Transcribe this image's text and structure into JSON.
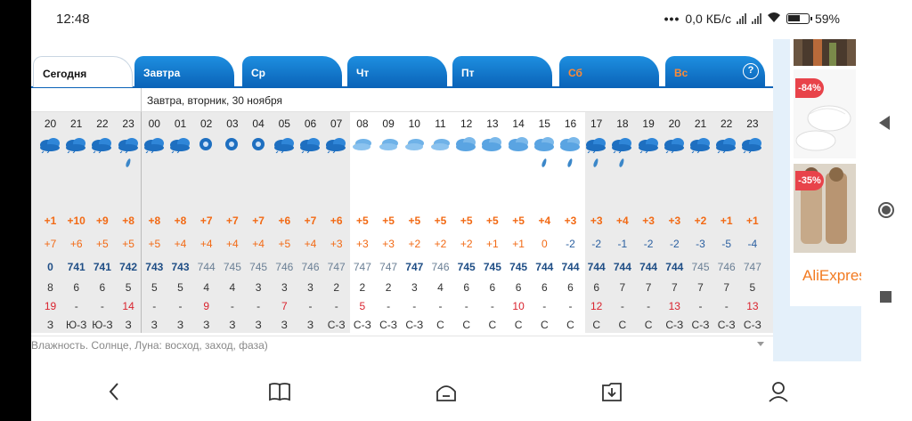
{
  "status": {
    "time": "12:48",
    "dots": "•••",
    "net": "0,0 КБ/с",
    "battery": "59%"
  },
  "tabs": [
    {
      "label": "Сегодня",
      "weekend": false
    },
    {
      "label": "Завтра",
      "weekend": false
    },
    {
      "label": "Ср",
      "weekend": false
    },
    {
      "label": "Чт",
      "weekend": false
    },
    {
      "label": "Пт",
      "weekend": false
    },
    {
      "label": "Сб",
      "weekend": true
    },
    {
      "label": "Вс",
      "weekend": true
    }
  ],
  "help_label": "?",
  "date_label": "Завтра, вторник, 30 ноября",
  "hours": [
    "20",
    "21",
    "22",
    "23",
    "00",
    "01",
    "02",
    "03",
    "04",
    "05",
    "06",
    "07",
    "08",
    "09",
    "10",
    "11",
    "12",
    "13",
    "14",
    "15",
    "16",
    "17",
    "18",
    "19",
    "20",
    "21",
    "22",
    "23"
  ],
  "icons": [
    "cloud-rain",
    "cloud-rain",
    "cloud-rain",
    "cloud-rain-drop",
    "cloud-rain",
    "cloud-rain",
    "night-clear",
    "night-clear",
    "night-clear",
    "cloud-rain",
    "cloud-rain",
    "cloud-rain",
    "partly-cloudy",
    "partly-cloudy",
    "partly-cloudy",
    "partly-cloudy",
    "cloudy",
    "cloudy",
    "cloudy",
    "cloudy-drop",
    "cloudy-drop",
    "cloud-rain-drop",
    "cloud-rain-drop",
    "cloud-rain",
    "cloud-rain",
    "cloud-rain",
    "cloud-rain",
    "cloud-rain"
  ],
  "temperature": [
    "+1",
    "+10",
    "+9",
    "+8",
    "+8",
    "+8",
    "+7",
    "+7",
    "+7",
    "+6",
    "+7",
    "+6",
    "+5",
    "+5",
    "+5",
    "+5",
    "+5",
    "+5",
    "+5",
    "+4",
    "+3",
    "+3",
    "+4",
    "+3",
    "+3",
    "+2",
    "+1",
    "+1"
  ],
  "feels_like": [
    "+7",
    "+6",
    "+5",
    "+5",
    "+5",
    "+4",
    "+4",
    "+4",
    "+4",
    "+5",
    "+4",
    "+3",
    "+3",
    "+3",
    "+2",
    "+2",
    "+2",
    "+1",
    "+1",
    "0",
    "-2",
    "-2",
    "-1",
    "-2",
    "-2",
    "-3",
    "-5",
    "-4"
  ],
  "pressure": [
    "0",
    "741",
    "741",
    "742",
    "743",
    "743",
    "744",
    "745",
    "745",
    "746",
    "746",
    "747",
    "747",
    "747",
    "747",
    "746",
    "745",
    "745",
    "745",
    "744",
    "744",
    "744",
    "744",
    "744",
    "744",
    "745",
    "746",
    "747"
  ],
  "wind_speed": [
    "8",
    "6",
    "6",
    "5",
    "5",
    "5",
    "4",
    "4",
    "3",
    "3",
    "3",
    "2",
    "2",
    "2",
    "3",
    "4",
    "6",
    "6",
    "6",
    "6",
    "6",
    "6",
    "7",
    "7",
    "7",
    "7",
    "7",
    "5"
  ],
  "precip": [
    "19",
    "",
    "",
    "14",
    "",
    "",
    "9",
    "",
    "",
    "7",
    "",
    "",
    "5",
    "",
    "",
    "",
    "",
    "",
    "10",
    "",
    "",
    "12",
    "",
    "",
    "13",
    "",
    "",
    "13"
  ],
  "precip_dashes": [
    "",
    "-",
    "-",
    "",
    "-",
    "-",
    "",
    "-",
    "-",
    "",
    "-",
    "-",
    "",
    "-",
    "-",
    "-",
    "-",
    "-",
    "",
    "-",
    "-",
    "",
    "-",
    "-",
    "",
    "-",
    "-",
    ""
  ],
  "wind_dir": [
    "З",
    "Ю-З",
    "Ю-З",
    "З",
    "З",
    "З",
    "З",
    "З",
    "З",
    "З",
    "З",
    "С-З",
    "С-З",
    "С-З",
    "С-З",
    "С",
    "С",
    "С",
    "С",
    "С",
    "С",
    "С",
    "С",
    "С",
    "С-З",
    "С-З",
    "С-З",
    "С-З"
  ],
  "footer": "Влажность. Солнце, Луна: восход, заход, фаза)",
  "ads": {
    "badge1": "-84%",
    "badge2": "-35%",
    "brand": "AliExpress"
  },
  "colors": {
    "tab_blue": "#0a63b8",
    "temp_orange": "#f26a15",
    "pressure_blue": "#1f4e86"
  }
}
